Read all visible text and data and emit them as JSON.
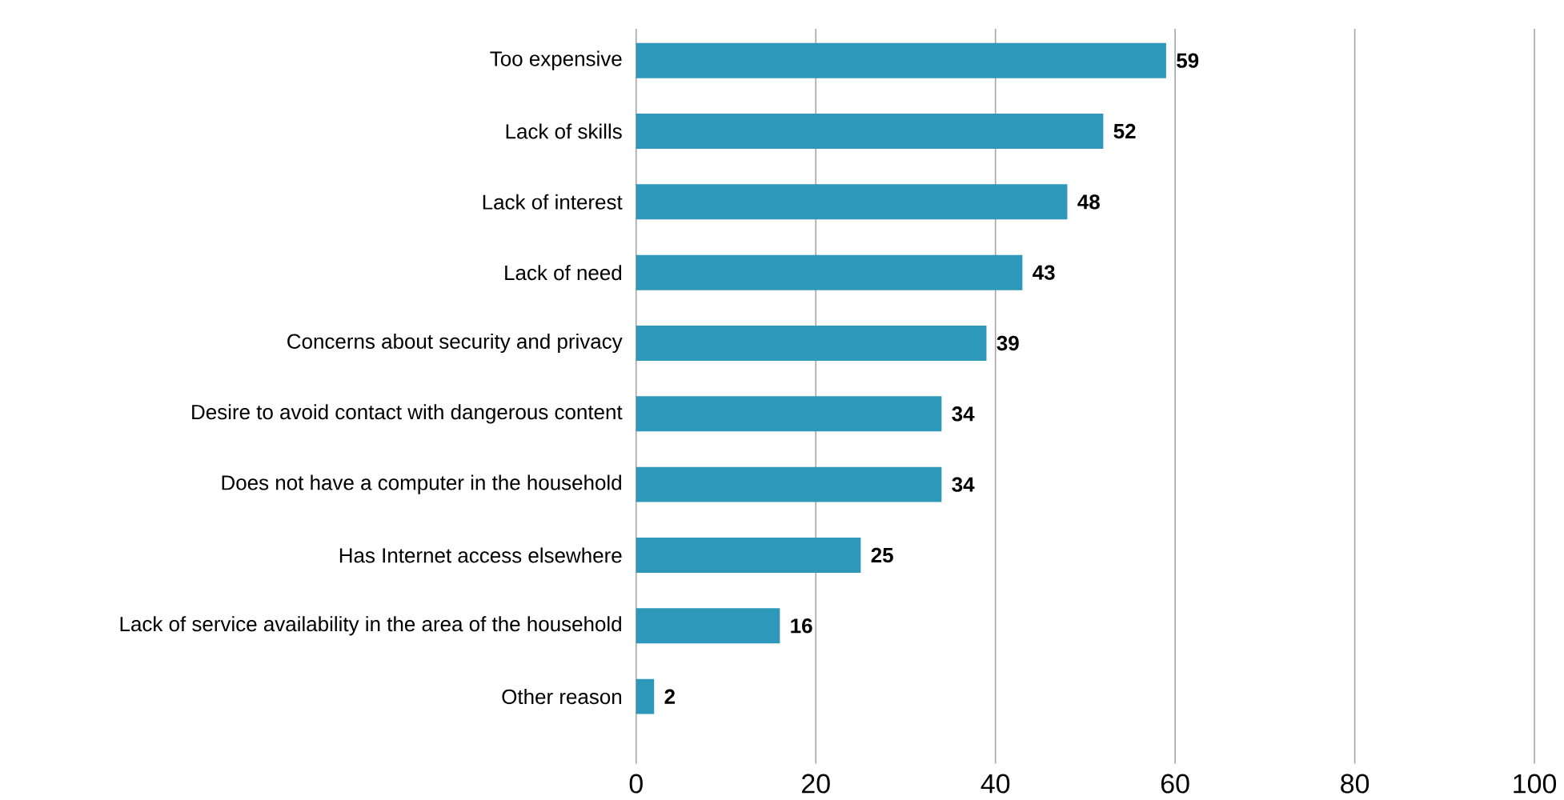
{
  "chart_data": {
    "type": "bar",
    "orientation": "horizontal",
    "categories": [
      "Too expensive",
      "Lack of skills",
      "Lack of interest",
      "Lack of need",
      "Concerns about security and privacy",
      "Desire to avoid contact with dangerous content",
      "Does not have a computer in the household",
      "Has Internet access elsewhere",
      "Lack of service availability in the area of the household",
      "Other reason"
    ],
    "values": [
      59,
      52,
      48,
      43,
      39,
      34,
      34,
      25,
      16,
      2
    ],
    "value_labels": [
      "59",
      "52",
      "48",
      "43",
      "39",
      "34",
      "34",
      "25",
      "16",
      "2"
    ],
    "color": "#2e98ba",
    "xlim": [
      0,
      100
    ],
    "xticks": [
      0,
      20,
      40,
      60,
      80,
      100
    ],
    "grid": "x"
  }
}
